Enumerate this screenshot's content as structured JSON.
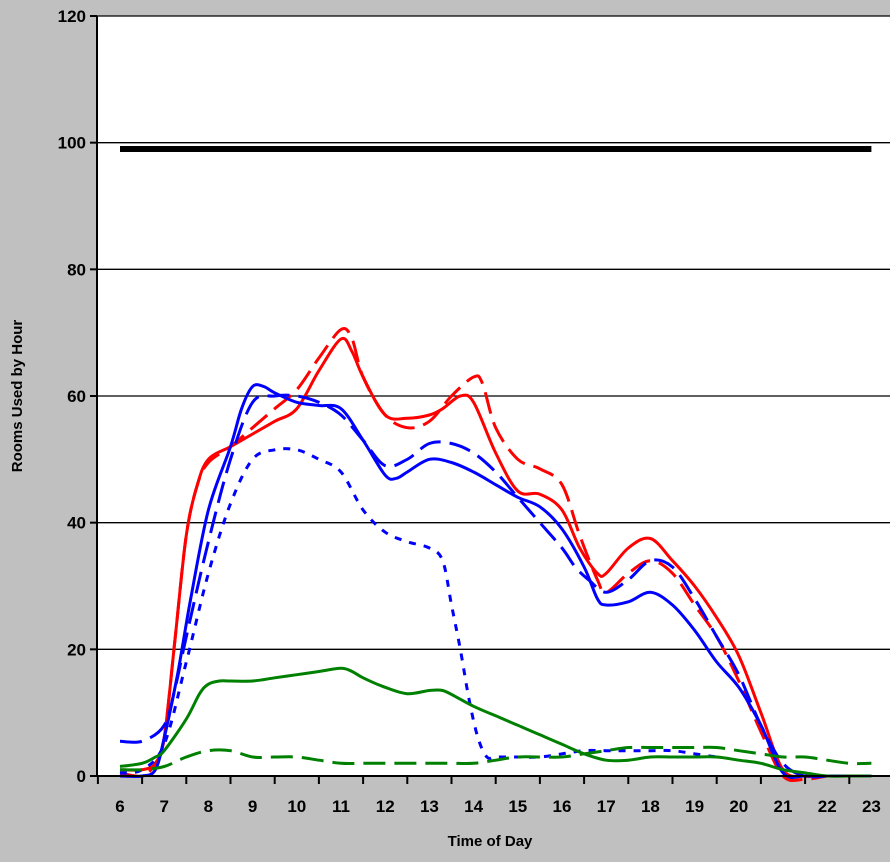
{
  "chart_data": {
    "type": "line",
    "title": "",
    "xlabel": "Time of Day",
    "ylabel": "Rooms Used by Hour",
    "xlim": [
      6,
      23.2
    ],
    "ylim": [
      0,
      120
    ],
    "xticks": [
      6,
      7,
      8,
      9,
      10,
      11,
      12,
      13,
      14,
      15,
      16,
      17,
      18,
      19,
      20,
      21,
      22,
      23
    ],
    "xtick_labels": [
      "6",
      "7",
      "8",
      "9",
      "10",
      "11",
      "12",
      "13",
      "14",
      "15",
      "16",
      "17",
      "18",
      "19",
      "20",
      "21",
      "22",
      "23"
    ],
    "yticks": [
      0,
      20,
      40,
      60,
      80,
      100,
      120
    ],
    "ytick_labels": [
      "0",
      "20",
      "40",
      "60",
      "80",
      "100",
      "120"
    ],
    "grid": true,
    "legend": "none",
    "series": [
      {
        "color": "#000000",
        "dash": "solid",
        "width": 6,
        "points": [
          [
            6,
            99
          ],
          [
            23,
            99
          ]
        ]
      },
      {
        "color": "#ff0000",
        "dash": "solid",
        "width": 3,
        "points": [
          [
            6,
            1
          ],
          [
            6.5,
            1
          ],
          [
            6.8,
            2
          ],
          [
            7,
            6
          ],
          [
            7.25,
            22
          ],
          [
            7.5,
            38
          ],
          [
            7.75,
            46
          ],
          [
            8,
            50
          ],
          [
            8.5,
            52
          ],
          [
            9,
            54
          ],
          [
            9.5,
            56
          ],
          [
            10,
            58
          ],
          [
            10.5,
            64
          ],
          [
            11,
            69
          ],
          [
            11.25,
            67
          ],
          [
            11.5,
            63
          ],
          [
            12,
            57
          ],
          [
            12.5,
            56.5
          ],
          [
            13,
            57
          ],
          [
            13.3,
            58
          ],
          [
            13.7,
            60
          ],
          [
            14,
            59
          ],
          [
            14.5,
            51
          ],
          [
            15,
            45
          ],
          [
            15.5,
            44.5
          ],
          [
            16,
            42
          ],
          [
            16.4,
            36
          ],
          [
            16.8,
            32
          ],
          [
            17,
            32
          ],
          [
            17.5,
            36
          ],
          [
            18,
            37.5
          ],
          [
            18.5,
            34
          ],
          [
            19,
            30
          ],
          [
            19.5,
            25
          ],
          [
            20,
            19
          ],
          [
            20.5,
            10
          ],
          [
            21,
            1
          ],
          [
            21.5,
            0
          ],
          [
            22,
            0
          ]
        ]
      },
      {
        "color": "#ff0000",
        "dash": "long",
        "width": 3,
        "points": [
          [
            6,
            0.5
          ],
          [
            6.5,
            0
          ],
          [
            6.8,
            2
          ],
          [
            7,
            6
          ],
          [
            7.25,
            22
          ],
          [
            7.5,
            38
          ],
          [
            7.75,
            46
          ],
          [
            8,
            49.5
          ],
          [
            8.5,
            52
          ],
          [
            9,
            55
          ],
          [
            9.5,
            58
          ],
          [
            10,
            61
          ],
          [
            10.5,
            66
          ],
          [
            11,
            70.5
          ],
          [
            11.25,
            69
          ],
          [
            11.5,
            63
          ],
          [
            12,
            57
          ],
          [
            12.5,
            55
          ],
          [
            13,
            56
          ],
          [
            13.5,
            60
          ],
          [
            14,
            63
          ],
          [
            14.2,
            62
          ],
          [
            14.5,
            55
          ],
          [
            15,
            50
          ],
          [
            15.5,
            48.5
          ],
          [
            16,
            46
          ],
          [
            16.4,
            38
          ],
          [
            16.8,
            31
          ],
          [
            17,
            29
          ],
          [
            17.5,
            32
          ],
          [
            18,
            34
          ],
          [
            18.5,
            32
          ],
          [
            19,
            27
          ],
          [
            19.5,
            22
          ],
          [
            20,
            15
          ],
          [
            20.5,
            7
          ],
          [
            21,
            0
          ],
          [
            21.5,
            -0.5
          ],
          [
            22,
            0
          ]
        ]
      },
      {
        "color": "#0000ff",
        "dash": "solid",
        "width": 3,
        "points": [
          [
            6,
            0
          ],
          [
            6.5,
            0
          ],
          [
            6.8,
            1
          ],
          [
            7,
            6
          ],
          [
            7.3,
            16
          ],
          [
            7.6,
            28
          ],
          [
            8,
            42
          ],
          [
            8.5,
            52
          ],
          [
            8.75,
            58
          ],
          [
            9,
            61.5
          ],
          [
            9.25,
            61.5
          ],
          [
            9.5,
            60.5
          ],
          [
            10,
            59
          ],
          [
            10.5,
            58.5
          ],
          [
            11,
            58
          ],
          [
            11.5,
            53
          ],
          [
            12,
            47.5
          ],
          [
            12.25,
            47
          ],
          [
            12.5,
            48
          ],
          [
            13,
            50
          ],
          [
            13.5,
            49.5
          ],
          [
            14,
            48
          ],
          [
            14.5,
            46
          ],
          [
            15,
            44
          ],
          [
            15.5,
            42.5
          ],
          [
            16,
            39
          ],
          [
            16.5,
            33
          ],
          [
            16.8,
            28
          ],
          [
            17,
            27
          ],
          [
            17.5,
            27.5
          ],
          [
            18,
            29
          ],
          [
            18.5,
            27
          ],
          [
            19,
            23
          ],
          [
            19.5,
            18
          ],
          [
            20,
            14
          ],
          [
            20.5,
            8
          ],
          [
            21,
            0.5
          ],
          [
            21.5,
            0
          ],
          [
            22,
            0
          ],
          [
            22.5,
            0
          ],
          [
            23,
            0
          ]
        ]
      },
      {
        "color": "#0000ff",
        "dash": "long",
        "width": 3,
        "points": [
          [
            6,
            5.5
          ],
          [
            6.5,
            5.5
          ],
          [
            7,
            8
          ],
          [
            7.25,
            14
          ],
          [
            7.5,
            22
          ],
          [
            8,
            37
          ],
          [
            8.5,
            50
          ],
          [
            9,
            59
          ],
          [
            9.5,
            60
          ],
          [
            10,
            60
          ],
          [
            10.5,
            59
          ],
          [
            11,
            57
          ],
          [
            11.5,
            53
          ],
          [
            12,
            49
          ],
          [
            12.5,
            50
          ],
          [
            13,
            52.5
          ],
          [
            13.5,
            52.5
          ],
          [
            14,
            51
          ],
          [
            14.5,
            48
          ],
          [
            15,
            44
          ],
          [
            15.5,
            40
          ],
          [
            16,
            36
          ],
          [
            16.3,
            33
          ],
          [
            16.6,
            31
          ],
          [
            17,
            29
          ],
          [
            17.5,
            31
          ],
          [
            18,
            34
          ],
          [
            18.5,
            33
          ],
          [
            19,
            28
          ],
          [
            19.5,
            22
          ],
          [
            20,
            16
          ],
          [
            20.5,
            8
          ],
          [
            21,
            2
          ],
          [
            21.5,
            0
          ],
          [
            22,
            0
          ]
        ]
      },
      {
        "color": "#0000ff",
        "dash": "short",
        "width": 3,
        "points": [
          [
            6,
            0.5
          ],
          [
            6.5,
            1
          ],
          [
            7,
            5
          ],
          [
            7.5,
            18
          ],
          [
            8,
            32
          ],
          [
            8.5,
            43
          ],
          [
            9,
            50
          ],
          [
            9.5,
            51.5
          ],
          [
            10,
            51.5
          ],
          [
            10.5,
            50
          ],
          [
            11,
            48
          ],
          [
            11.5,
            42
          ],
          [
            12,
            38.5
          ],
          [
            12.5,
            37
          ],
          [
            13,
            36
          ],
          [
            13.3,
            34
          ],
          [
            13.5,
            27
          ],
          [
            13.7,
            20
          ],
          [
            13.9,
            12
          ],
          [
            14.1,
            6
          ],
          [
            14.3,
            3
          ],
          [
            14.5,
            3
          ],
          [
            15,
            3
          ],
          [
            15.5,
            3
          ],
          [
            16,
            3.5
          ],
          [
            16.5,
            4
          ],
          [
            17,
            4
          ],
          [
            17.5,
            4
          ],
          [
            18,
            4
          ],
          [
            18.5,
            4
          ],
          [
            19,
            3.5
          ],
          [
            19.5,
            3
          ]
        ]
      },
      {
        "color": "#008000",
        "dash": "solid",
        "width": 3,
        "points": [
          [
            6,
            1.5
          ],
          [
            6.5,
            2
          ],
          [
            6.8,
            3
          ],
          [
            7,
            4
          ],
          [
            7.5,
            9
          ],
          [
            7.8,
            13
          ],
          [
            8,
            14.5
          ],
          [
            8.25,
            15
          ],
          [
            8.5,
            15
          ],
          [
            9,
            15
          ],
          [
            9.5,
            15.5
          ],
          [
            10,
            16
          ],
          [
            10.5,
            16.5
          ],
          [
            11,
            17
          ],
          [
            11.25,
            16.5
          ],
          [
            11.5,
            15.5
          ],
          [
            12,
            14
          ],
          [
            12.5,
            13
          ],
          [
            13,
            13.5
          ],
          [
            13.3,
            13.5
          ],
          [
            13.6,
            12.5
          ],
          [
            14,
            11
          ],
          [
            14.5,
            9.5
          ],
          [
            15,
            8
          ],
          [
            15.5,
            6.5
          ],
          [
            16,
            5
          ],
          [
            16.5,
            3.5
          ],
          [
            17,
            2.5
          ],
          [
            17.5,
            2.5
          ],
          [
            18,
            3
          ],
          [
            18.5,
            3
          ],
          [
            19,
            3
          ],
          [
            19.5,
            3
          ],
          [
            20,
            2.5
          ],
          [
            20.5,
            2
          ],
          [
            21,
            1
          ],
          [
            21.5,
            0.5
          ],
          [
            22,
            0
          ],
          [
            22.5,
            0
          ],
          [
            23,
            0
          ]
        ]
      },
      {
        "color": "#008000",
        "dash": "long",
        "width": 3,
        "points": [
          [
            6,
            1
          ],
          [
            6.5,
            1
          ],
          [
            7,
            1.5
          ],
          [
            7.5,
            3
          ],
          [
            8,
            4
          ],
          [
            8.5,
            4
          ],
          [
            9,
            3
          ],
          [
            9.5,
            3
          ],
          [
            10,
            3
          ],
          [
            10.5,
            2.5
          ],
          [
            11,
            2
          ],
          [
            11.5,
            2
          ],
          [
            12,
            2
          ],
          [
            12.5,
            2
          ],
          [
            13,
            2
          ],
          [
            13.5,
            2
          ],
          [
            14,
            2
          ],
          [
            14.5,
            2.5
          ],
          [
            15,
            3
          ],
          [
            15.5,
            3
          ],
          [
            16,
            3
          ],
          [
            16.5,
            3.5
          ],
          [
            17,
            4
          ],
          [
            17.5,
            4.5
          ],
          [
            18,
            4.5
          ],
          [
            18.5,
            4.5
          ],
          [
            19,
            4.5
          ],
          [
            19.5,
            4.5
          ],
          [
            20,
            4
          ],
          [
            20.5,
            3.5
          ],
          [
            21,
            3
          ],
          [
            21.5,
            3
          ],
          [
            22,
            2.5
          ],
          [
            22.5,
            2
          ],
          [
            23,
            2
          ]
        ]
      }
    ]
  }
}
